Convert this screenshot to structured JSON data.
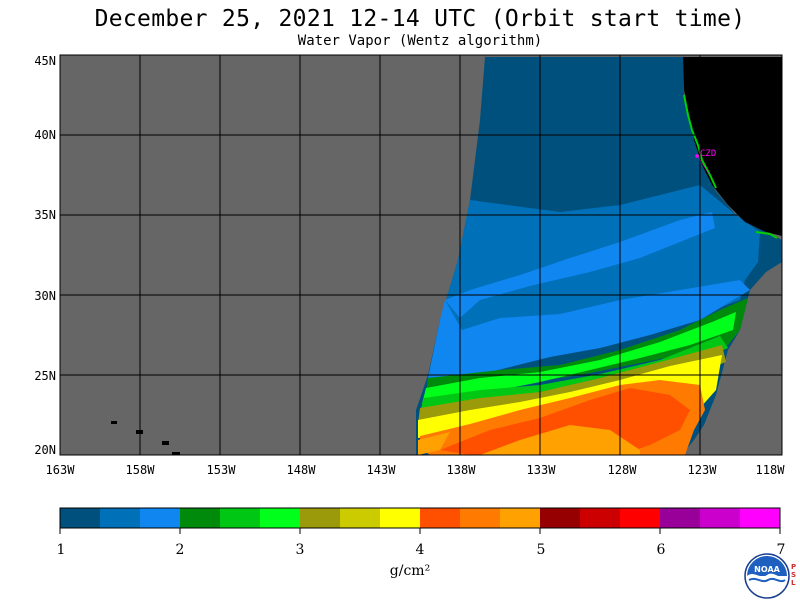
{
  "header": {
    "title": "December 25, 2021  12-14 UTC  (Orbit start time)",
    "subtitle": "Water Vapor (Wentz algorithm)"
  },
  "map": {
    "lat_labels": [
      "45N",
      "40N",
      "35N",
      "30N",
      "25N",
      "20N"
    ],
    "lon_labels": [
      "163W",
      "158W",
      "153W",
      "148W",
      "143W",
      "138W",
      "133W",
      "128W",
      "123W",
      "118W"
    ],
    "station_label": "CZD",
    "colors": {
      "no_data": "#666666",
      "land": "#000000",
      "station": "#ff00ff"
    }
  },
  "colorbar": {
    "tick_labels": [
      "1",
      "2",
      "3",
      "4",
      "5",
      "6",
      "7"
    ],
    "unit": "g/cm²",
    "colors": [
      "#00507d",
      "#0070b8",
      "#0f86f0",
      "#008a0c",
      "#00c714",
      "#00ff1a",
      "#9a9a0a",
      "#cbcb00",
      "#ffff00",
      "#ff5000",
      "#ff7a00",
      "#ffa100",
      "#960000",
      "#cc0000",
      "#ff0000",
      "#990099",
      "#cc00cc",
      "#ff00ff"
    ]
  },
  "logo": {
    "name": "noaa-logo",
    "text": "NOAA",
    "side_letters": "PSL"
  }
}
